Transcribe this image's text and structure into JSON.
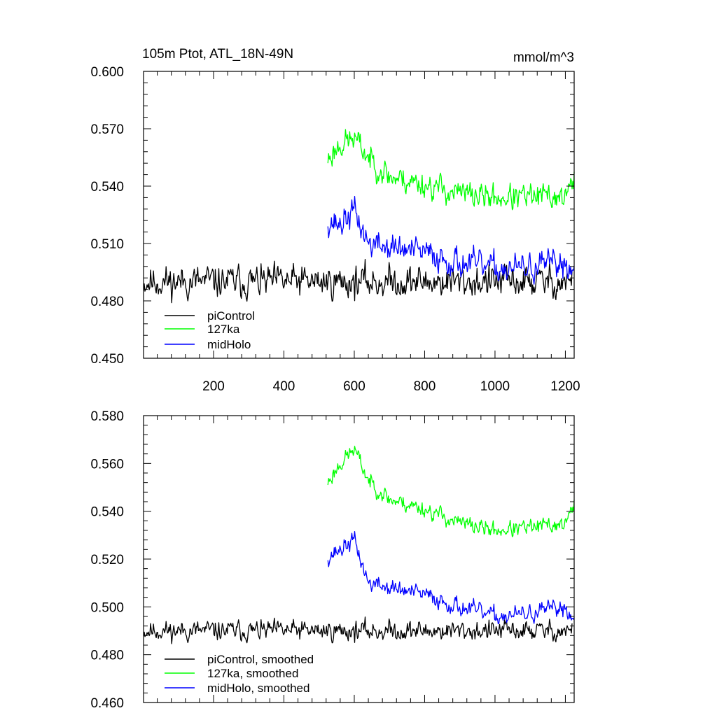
{
  "chart_data": [
    {
      "type": "line",
      "title_left": "105m Ptot, ATL_18N-49N",
      "title_right": "mmol/m^3",
      "xlim": [
        1,
        1225
      ],
      "ylim": [
        0.45,
        0.6
      ],
      "yticks": [
        "0.450",
        "0.480",
        "0.510",
        "0.540",
        "0.570",
        "0.600"
      ],
      "xticks": [
        "200",
        "400",
        "600",
        "800",
        "1000",
        "1200"
      ],
      "legend_position": "bottom-left",
      "series": [
        {
          "name": "piControl",
          "color": "#000000",
          "x_start": 1,
          "x_end": 1220,
          "base": 0.49,
          "noise": 0.0085,
          "seed": 11
        },
        {
          "name": "127ka",
          "color": "#00ff00",
          "x_start": 525,
          "x_end": 1225,
          "seed": 23,
          "noise": 0.007,
          "trend_x": [
            525,
            560,
            600,
            640,
            700,
            800,
            900,
            1000,
            1100,
            1200,
            1225
          ],
          "trend_y": [
            0.554,
            0.562,
            0.565,
            0.555,
            0.545,
            0.541,
            0.536,
            0.534,
            0.534,
            0.535,
            0.542
          ]
        },
        {
          "name": "midHolo",
          "color": "#0000ff",
          "x_start": 525,
          "x_end": 1225,
          "seed": 37,
          "noise": 0.0075,
          "trend_x": [
            525,
            560,
            600,
            640,
            700,
            800,
            900,
            1000,
            1100,
            1200,
            1225
          ],
          "trend_y": [
            0.522,
            0.52,
            0.527,
            0.51,
            0.508,
            0.505,
            0.5,
            0.497,
            0.497,
            0.5,
            0.495
          ]
        }
      ]
    },
    {
      "type": "line",
      "xlim": [
        1,
        1225
      ],
      "ylim": [
        0.46,
        0.58
      ],
      "yticks": [
        "0.460",
        "0.480",
        "0.500",
        "0.520",
        "0.540",
        "0.560",
        "0.580"
      ],
      "legend_position": "bottom-left",
      "series": [
        {
          "name": "piControl, smoothed",
          "color": "#000000",
          "x_start": 1,
          "x_end": 1220,
          "base": 0.49,
          "noise": 0.0042,
          "seed": 11
        },
        {
          "name": "127ka, smoothed",
          "color": "#00ff00",
          "x_start": 525,
          "x_end": 1225,
          "seed": 23,
          "noise": 0.0035,
          "trend_x": [
            525,
            560,
            600,
            640,
            700,
            800,
            900,
            1000,
            1100,
            1200,
            1225
          ],
          "trend_y": [
            0.552,
            0.56,
            0.566,
            0.553,
            0.545,
            0.541,
            0.535,
            0.532,
            0.533,
            0.535,
            0.542
          ]
        },
        {
          "name": "midHolo, smoothed",
          "color": "#0000ff",
          "x_start": 525,
          "x_end": 1225,
          "seed": 37,
          "noise": 0.0037,
          "trend_x": [
            525,
            560,
            600,
            640,
            700,
            800,
            900,
            1000,
            1100,
            1200,
            1225
          ],
          "trend_y": [
            0.521,
            0.524,
            0.528,
            0.51,
            0.508,
            0.505,
            0.5,
            0.496,
            0.497,
            0.5,
            0.494
          ]
        }
      ]
    }
  ]
}
